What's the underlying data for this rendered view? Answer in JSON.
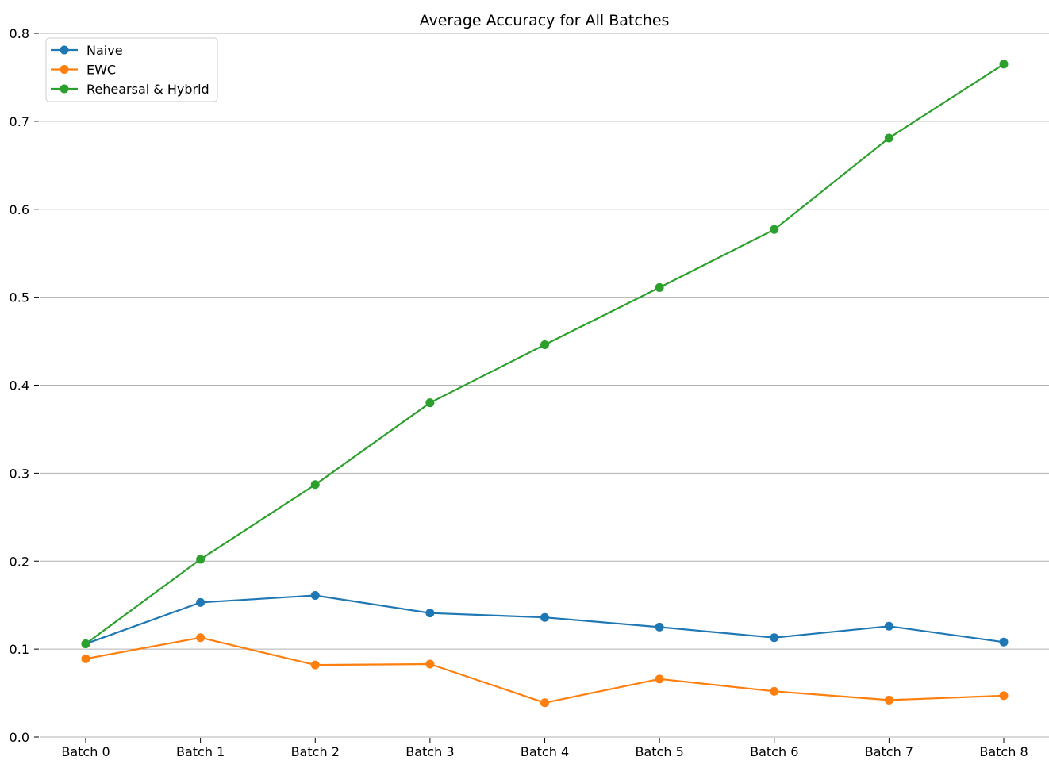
{
  "chart_data": {
    "type": "line",
    "title": "Average Accuracy for All Batches",
    "xlabel": "",
    "ylabel": "",
    "categories": [
      "Batch 0",
      "Batch 1",
      "Batch 2",
      "Batch 3",
      "Batch 4",
      "Batch 5",
      "Batch 6",
      "Batch 7",
      "Batch 8"
    ],
    "ylim": [
      0,
      0.8
    ],
    "yticks": [
      "0.0",
      "0.1",
      "0.2",
      "0.3",
      "0.4",
      "0.5",
      "0.6",
      "0.7",
      "0.8"
    ],
    "grid": "horizontal",
    "legend_position": "top-left",
    "series": [
      {
        "name": "Naive",
        "color": "#1f77b4",
        "values": [
          0.106,
          0.153,
          0.161,
          0.141,
          0.136,
          0.125,
          0.113,
          0.126,
          0.108
        ]
      },
      {
        "name": "EWC",
        "color": "#ff7f0e",
        "values": [
          0.089,
          0.113,
          0.082,
          0.083,
          0.039,
          0.066,
          0.052,
          0.042,
          0.047
        ]
      },
      {
        "name": "Rehearsal & Hybrid",
        "color": "#2ca02c",
        "values": [
          0.106,
          0.202,
          0.287,
          0.38,
          0.446,
          0.511,
          0.577,
          0.681,
          0.765
        ]
      }
    ]
  }
}
